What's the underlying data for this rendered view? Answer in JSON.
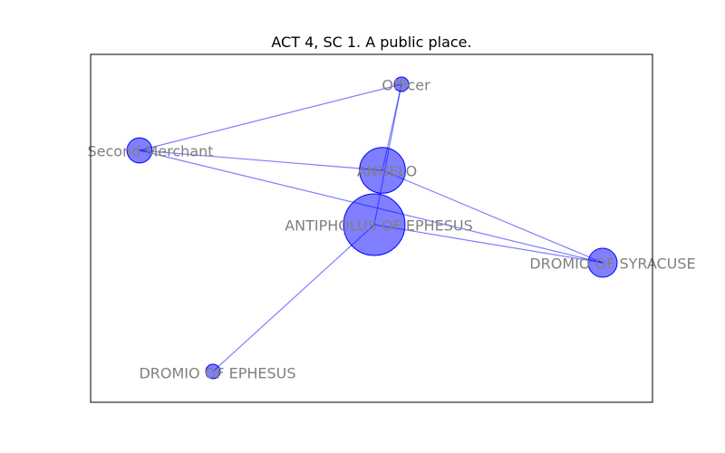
{
  "title": "ACT 4, SC 1. A public place.",
  "colors": {
    "node": "#0000ff",
    "edge": "#0000ff",
    "label": "#808080"
  },
  "nodes": [
    {
      "id": "officer",
      "label": "Officer",
      "weight": 1
    },
    {
      "id": "second-merchant",
      "label": "Second Merchant",
      "weight": 3
    },
    {
      "id": "angelo",
      "label": "ANGELO",
      "weight": 10
    },
    {
      "id": "antipholus-of-ephesus",
      "label": "ANTIPHOLUS OF EPHESUS",
      "weight": 18
    },
    {
      "id": "dromio-of-syracuse",
      "label": "DROMIO OF SYRACUSE",
      "weight": 4
    },
    {
      "id": "dromio-of-ephesus",
      "label": "DROMIO OF EPHESUS",
      "weight": 1
    }
  ],
  "edges": [
    [
      "officer",
      "second-merchant"
    ],
    [
      "officer",
      "angelo"
    ],
    [
      "officer",
      "antipholus-of-ephesus"
    ],
    [
      "second-merchant",
      "angelo"
    ],
    [
      "second-merchant",
      "dromio-of-syracuse"
    ],
    [
      "angelo",
      "dromio-of-syracuse"
    ],
    [
      "antipholus-of-ephesus",
      "dromio-of-syracuse"
    ],
    [
      "antipholus-of-ephesus",
      "dromio-of-ephesus"
    ]
  ]
}
